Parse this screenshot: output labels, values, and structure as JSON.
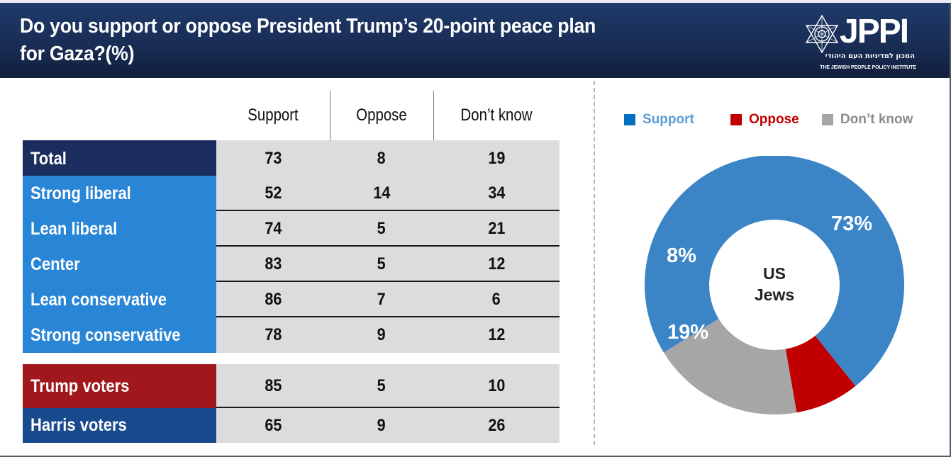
{
  "header": {
    "title": "Do you support or oppose President Trump’s 20-point peace plan for Gaza?(%)",
    "logo": {
      "name": "JPPI",
      "hebrew": "המכון למדיניות העם היהודי",
      "english": "THE JEWISH PEOPLE POLICY INSTITUTE",
      "icon": "star-of-david-icon"
    }
  },
  "table": {
    "columns": [
      "Support",
      "Oppose",
      "Don’t know"
    ],
    "rows": [
      {
        "label": "Total",
        "values": [
          "73",
          "8",
          "19"
        ],
        "color": "#1b2d5e"
      },
      {
        "label": "Strong liberal",
        "values": [
          "52",
          "14",
          "34"
        ],
        "color": "#2985d6"
      },
      {
        "label": "Lean liberal",
        "values": [
          "74",
          "5",
          "21"
        ],
        "color": "#2985d6"
      },
      {
        "label": "Center",
        "values": [
          "83",
          "5",
          "12"
        ],
        "color": "#2985d6"
      },
      {
        "label": "Lean conservative",
        "values": [
          "86",
          "7",
          "6"
        ],
        "color": "#2985d6"
      },
      {
        "label": "Strong conservative",
        "values": [
          "78",
          "9",
          "12"
        ],
        "color": "#2985d6"
      },
      {
        "label": "Trump voters",
        "values": [
          "85",
          "5",
          "10"
        ],
        "color": "#a0171c"
      },
      {
        "label": "Harris voters",
        "values": [
          "65",
          "9",
          "26"
        ],
        "color": "#1a4a8e"
      }
    ]
  },
  "chart_data": {
    "type": "pie",
    "variant": "donut",
    "title": "US Jews",
    "center_label": [
      "US",
      "Jews"
    ],
    "categories": [
      "Support",
      "Oppose",
      "Don’t know"
    ],
    "values": [
      73,
      8,
      19
    ],
    "data_labels": [
      "73%",
      "8%",
      "19%"
    ],
    "colors": [
      "#3b84c5",
      "#c00000",
      "#a6a6a6"
    ],
    "legend": {
      "position": "top",
      "entries": [
        {
          "label": "Support",
          "swatch": "#0070c0",
          "text_color": "#5b9bd5"
        },
        {
          "label": "Oppose",
          "swatch": "#c00000",
          "text_color": "#c00000"
        },
        {
          "label": "Don’t know",
          "swatch": "#a6a6a6",
          "text_color": "#8c8c8c"
        }
      ]
    }
  }
}
